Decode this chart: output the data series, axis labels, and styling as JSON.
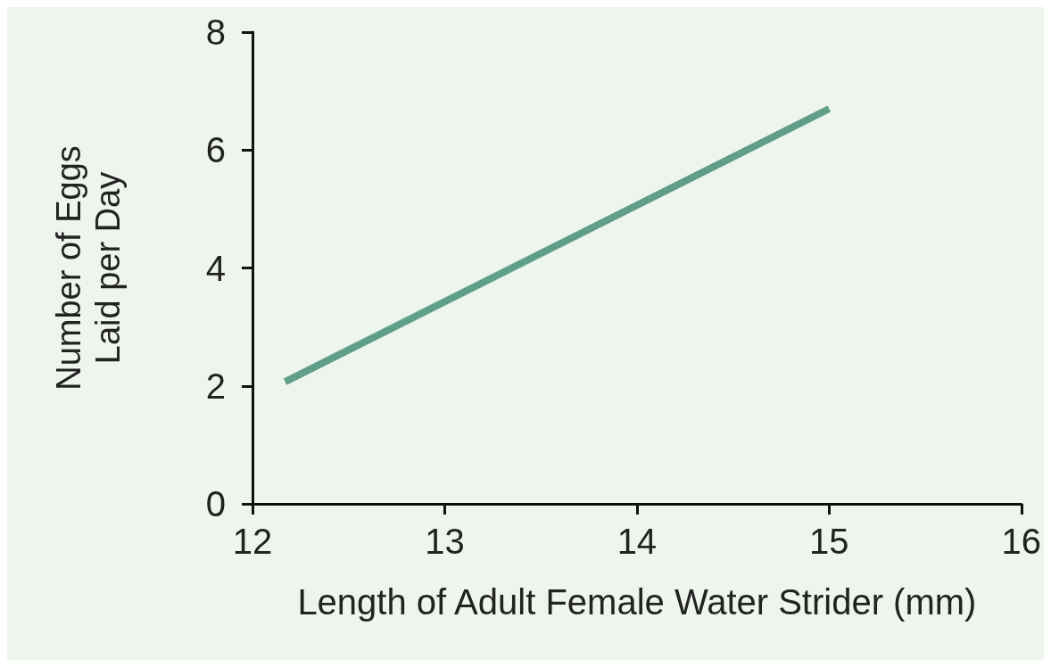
{
  "chart_data": {
    "type": "line",
    "xlabel": "Length of Adult Female Water Strider (mm)",
    "ylabel": "Number of Eggs\nLaid per Day",
    "series": [
      {
        "color": "#5f9e88",
        "x": [
          12.17,
          15
        ],
        "values": [
          2.07,
          6.7
        ]
      }
    ],
    "xlim": [
      12,
      16
    ],
    "xticks": [
      12,
      13,
      14,
      15,
      16
    ],
    "ylim": [
      0,
      8
    ],
    "yticks": [
      0,
      2,
      4,
      6,
      8
    ],
    "grid": false,
    "marker": "none",
    "line_style": "solid"
  }
}
